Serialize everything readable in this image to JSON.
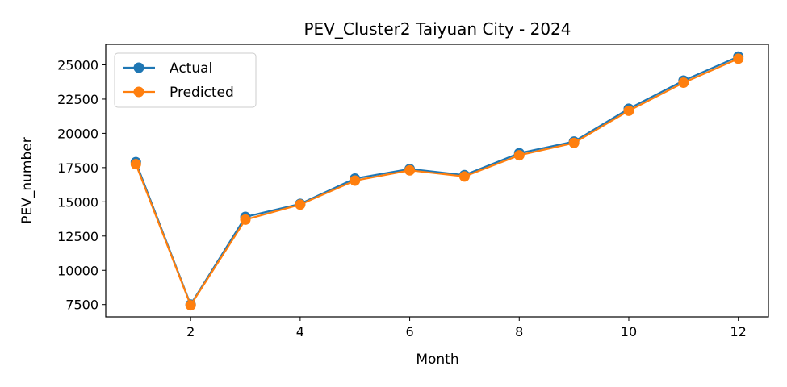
{
  "chart_data": {
    "type": "line",
    "title": "PEV_Cluster2 Taiyuan City - 2024",
    "xlabel": "Month",
    "ylabel": "PEV_number",
    "x": [
      1,
      2,
      3,
      4,
      5,
      6,
      7,
      8,
      9,
      10,
      11,
      12
    ],
    "xticks": [
      2,
      4,
      6,
      8,
      10,
      12
    ],
    "yticks": [
      7500,
      10000,
      12500,
      15000,
      17500,
      20000,
      22500,
      25000
    ],
    "xlim": [
      0.45,
      12.55
    ],
    "ylim": [
      6600,
      26500
    ],
    "grid": false,
    "legend_position": "upper-left",
    "series": [
      {
        "name": "Actual",
        "color": "#1f77b4",
        "values": [
          17900,
          7500,
          13900,
          14850,
          16700,
          17400,
          16950,
          18550,
          19400,
          21800,
          23850,
          25600
        ]
      },
      {
        "name": "Predicted",
        "color": "#ff7f0e",
        "values": [
          17750,
          7450,
          13700,
          14800,
          16550,
          17300,
          16850,
          18400,
          19300,
          21650,
          23700,
          25450
        ]
      }
    ]
  }
}
